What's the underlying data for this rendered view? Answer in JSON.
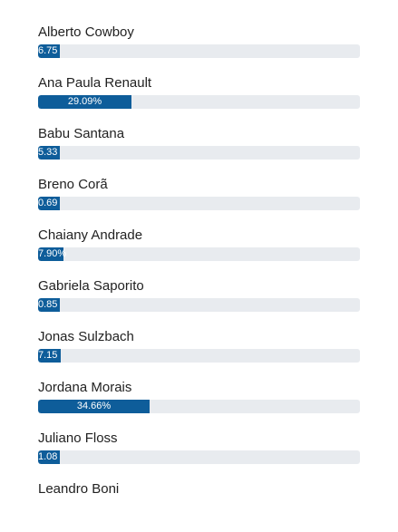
{
  "chart_data": {
    "type": "bar",
    "orientation": "horizontal",
    "ylim": [
      0,
      100
    ],
    "colors": {
      "bar": "#0e5d9a",
      "track": "#e8ebef",
      "label": "#222222",
      "value_text": "#ffffff"
    },
    "items": [
      {
        "name": "Alberto Cowboy",
        "value": 6.75,
        "label": "6.75"
      },
      {
        "name": "Ana Paula Renault",
        "value": 29.09,
        "label": "29.09%"
      },
      {
        "name": "Babu Santana",
        "value": 5.33,
        "label": "5.33"
      },
      {
        "name": "Breno Corã",
        "value": 0.69,
        "label": "0.69"
      },
      {
        "name": "Chaiany Andrade",
        "value": 7.9,
        "label": "7.90%"
      },
      {
        "name": "Gabriela Saporito",
        "value": 0.85,
        "label": "0.85"
      },
      {
        "name": "Jonas Sulzbach",
        "value": 7.15,
        "label": "7.15"
      },
      {
        "name": "Jordana Morais",
        "value": 34.66,
        "label": "34.66%"
      },
      {
        "name": "Juliano Floss",
        "value": 1.08,
        "label": "1.08"
      },
      {
        "name": "Leandro Boni",
        "value": null,
        "label": ""
      }
    ]
  }
}
